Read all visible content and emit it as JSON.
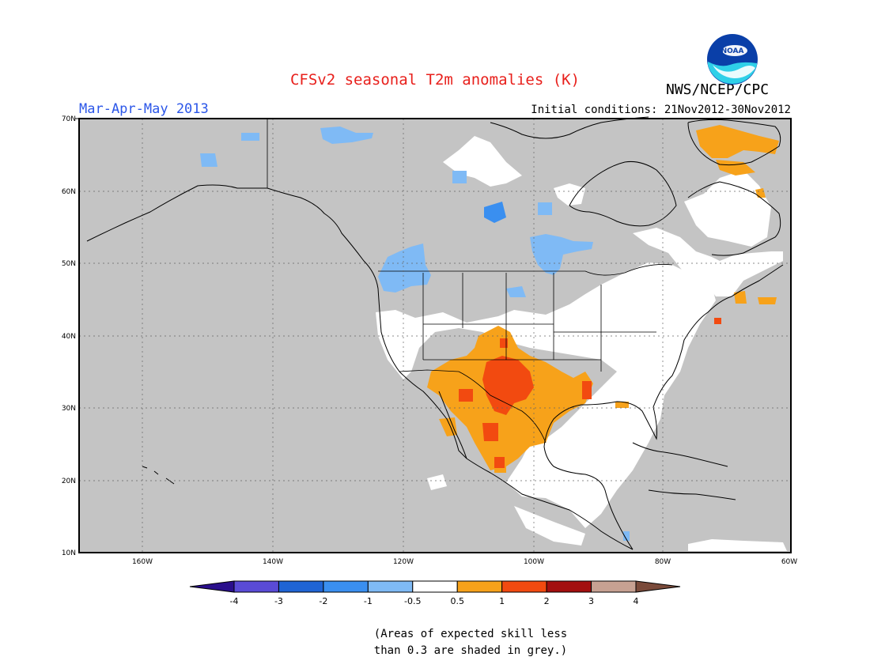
{
  "title": "CFSv2 seasonal T2m anomalies (K)",
  "organization": "NWS/NCEP/CPC",
  "logo_text": "NOAA",
  "season": "Mar-Apr-May 2013",
  "initial_conditions": "Initial conditions: 21Nov2012-30Nov2012",
  "lat_labels": [
    "70N",
    "60N",
    "50N",
    "40N",
    "30N",
    "20N",
    "10N"
  ],
  "lon_labels": [
    "160W",
    "140W",
    "120W",
    "100W",
    "80W",
    "60W"
  ],
  "colorbar": {
    "ticks": [
      "-4",
      "-3",
      "-2",
      "-1",
      "-0.5",
      "0.5",
      "1",
      "2",
      "3",
      "4"
    ],
    "bins": [
      {
        "range": "< -4",
        "color": "#2a0f8c"
      },
      {
        "range": "-4 to -3",
        "color": "#5a4bd6"
      },
      {
        "range": "-3 to -2",
        "color": "#1f64d4"
      },
      {
        "range": "-2 to -1",
        "color": "#3a8ff0"
      },
      {
        "range": "-1 to -0.5",
        "color": "#7fbaf5"
      },
      {
        "range": "-0.5 to 0.5",
        "color": "#ffffff"
      },
      {
        "range": "0.5 to 1",
        "color": "#f7a21a"
      },
      {
        "range": "1 to 2",
        "color": "#f24a10"
      },
      {
        "range": "2 to 3",
        "color": "#a30f0f"
      },
      {
        "range": "3 to 4",
        "color": "#c7a192"
      },
      {
        "range": "> 4",
        "color": "#7a4a3a"
      }
    ]
  },
  "skill_mask_color": "#c4c4c4",
  "footnote": [
    "(Areas of expected skill less",
    "than 0.3 are shaded in grey.)"
  ]
}
